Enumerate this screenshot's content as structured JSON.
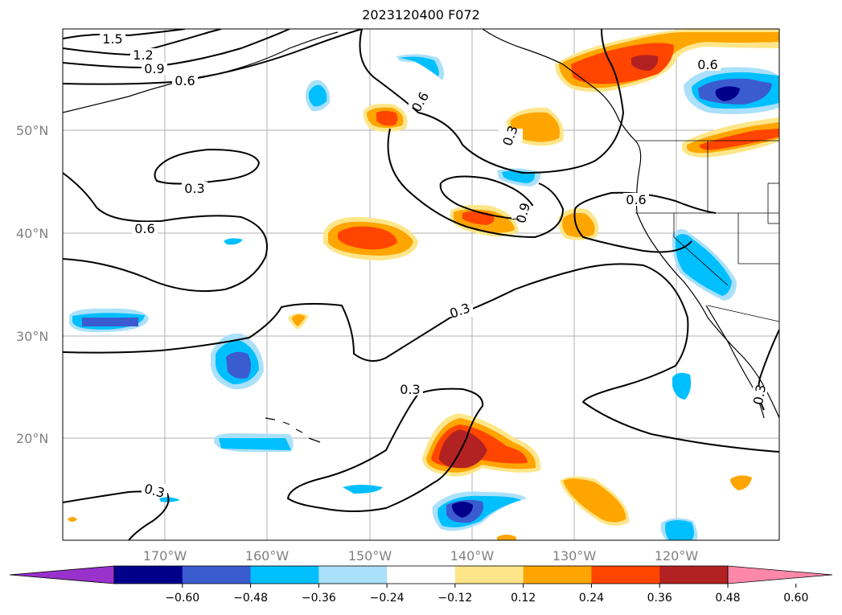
{
  "title": "2023120400 F072",
  "map": {
    "lat_labels": [
      "50°N",
      "40°N",
      "30°N",
      "20°N"
    ],
    "lon_labels": [
      "170°W",
      "160°W",
      "150°W",
      "140°W",
      "130°W",
      "120°W"
    ],
    "contour_labels": [
      "1.5",
      "1.2",
      "0.9",
      "0.6",
      "0.3",
      "0.6",
      "0.6",
      "0.3",
      "0.9",
      "0.6",
      "0.6",
      "0.3",
      "0.3",
      "0.3",
      "0.3"
    ]
  },
  "colorbar": {
    "ticks": [
      "−0.60",
      "−0.48",
      "−0.36",
      "−0.24",
      "−0.12",
      "0.12",
      "0.24",
      "0.36",
      "0.48",
      "0.60"
    ],
    "colors": [
      "#9932cc",
      "#00008b",
      "#3b5bd0",
      "#00bfff",
      "#aae0fa",
      "#ffffff",
      "#fde68a",
      "#ffa500",
      "#ff4500",
      "#b22222",
      "#ff88aa"
    ]
  }
}
